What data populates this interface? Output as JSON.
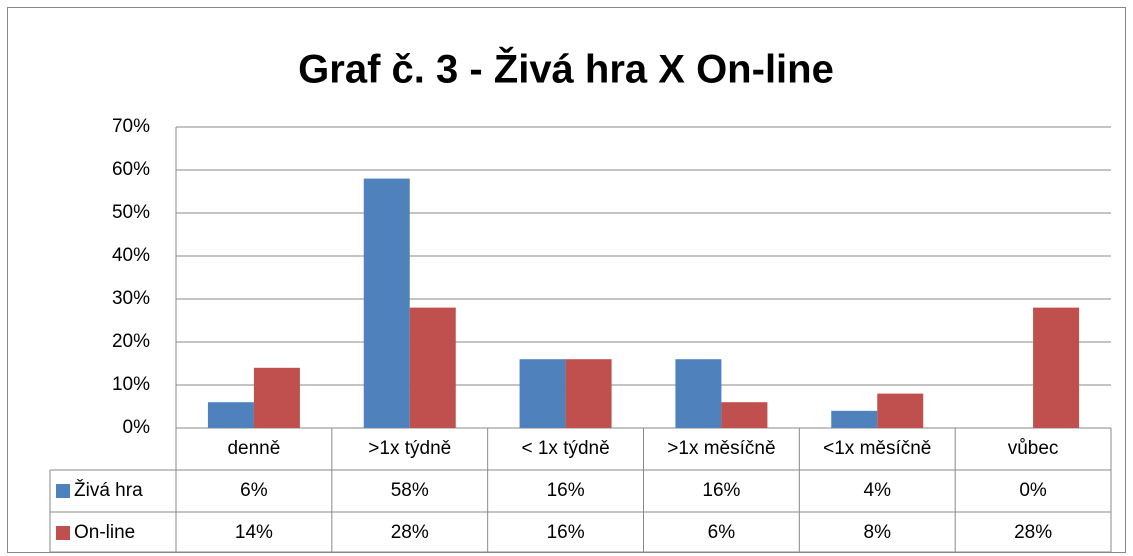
{
  "chart_data": {
    "type": "bar",
    "title": "Graf č. 3 - Živá hra X On-line",
    "categories": [
      "denně",
      ">1x týdně",
      "< 1x týdně",
      ">1x měsíčně",
      "<1x měsíčně",
      "vůbec"
    ],
    "series": [
      {
        "name": "Živá hra",
        "color": "#4f81bd",
        "values": [
          6,
          58,
          16,
          16,
          4,
          0
        ],
        "value_labels": [
          "6%",
          "58%",
          "16%",
          "16%",
          "4%",
          "0%"
        ]
      },
      {
        "name": "On-line",
        "color": "#c0504d",
        "values": [
          14,
          28,
          16,
          6,
          8,
          28
        ],
        "value_labels": [
          "14%",
          "28%",
          "16%",
          "6%",
          "8%",
          "28%"
        ]
      }
    ],
    "ylim": [
      0,
      70
    ],
    "yticks": [
      {
        "value": 0,
        "label": "0%"
      },
      {
        "value": 10,
        "label": "10%"
      },
      {
        "value": 20,
        "label": "20%"
      },
      {
        "value": 30,
        "label": "30%"
      },
      {
        "value": 40,
        "label": "40%"
      },
      {
        "value": 50,
        "label": "50%"
      },
      {
        "value": 60,
        "label": "60%"
      },
      {
        "value": 70,
        "label": "70%"
      }
    ],
    "grid": true
  }
}
